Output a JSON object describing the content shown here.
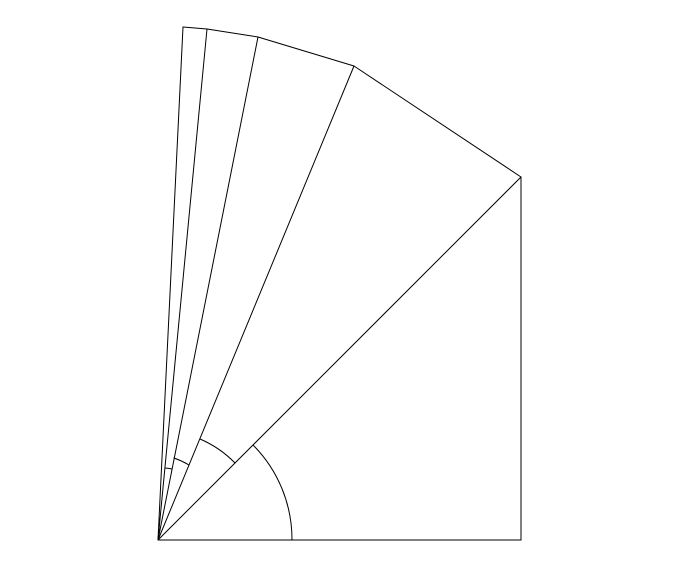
{
  "diagram": {
    "type": "geometric-figure",
    "colors": {
      "stroke": "#000000",
      "background": "#ffffff"
    }
  }
}
